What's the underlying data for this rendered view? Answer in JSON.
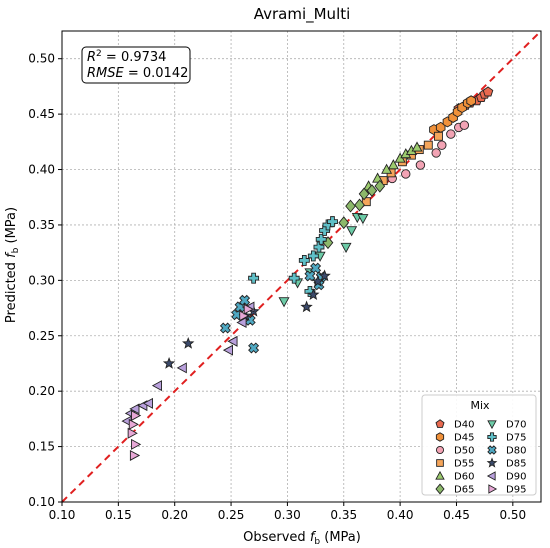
{
  "chart_data": {
    "type": "scatter",
    "title": "Avrami_Multi",
    "xlabel_main": "Observed ",
    "xlabel_sym": "f",
    "xlabel_sub": "b",
    "xlabel_unit": " (MPa)",
    "ylabel_main": "Predicted ",
    "ylabel_sym": "f",
    "ylabel_sub": "b",
    "ylabel_unit": " (MPa)",
    "xlim": [
      0.1,
      0.525
    ],
    "ylim": [
      0.1,
      0.525
    ],
    "xticks": [
      "0.10",
      "0.15",
      "0.20",
      "0.25",
      "0.30",
      "0.35",
      "0.40",
      "0.45",
      "0.50"
    ],
    "yticks": [
      "0.10",
      "0.15",
      "0.20",
      "0.25",
      "0.30",
      "0.35",
      "0.40",
      "0.45",
      "0.50"
    ],
    "grid": true,
    "reference_line": "y = x",
    "stats": {
      "r2_label": "R",
      "r2_sup": "2",
      "r2_value": " = 0.9734",
      "rmse_label": "RMSE",
      "rmse_value": " = 0.0142"
    },
    "legend": {
      "title": "Mix",
      "placement": "lower-right",
      "columns": 2
    },
    "series": [
      {
        "name": "D40",
        "marker": "pentagon",
        "color": "#e8694f",
        "points": [
          [
            0.452,
            0.455
          ],
          [
            0.458,
            0.458
          ],
          [
            0.462,
            0.46
          ],
          [
            0.468,
            0.462
          ],
          [
            0.472,
            0.465
          ],
          [
            0.475,
            0.468
          ],
          [
            0.478,
            0.47
          ]
        ]
      },
      {
        "name": "D45",
        "marker": "hexagon",
        "color": "#f0913a",
        "points": [
          [
            0.43,
            0.436
          ],
          [
            0.436,
            0.438
          ],
          [
            0.442,
            0.443
          ],
          [
            0.447,
            0.447
          ],
          [
            0.451,
            0.452
          ],
          [
            0.455,
            0.456
          ],
          [
            0.46,
            0.46
          ],
          [
            0.463,
            0.462
          ]
        ]
      },
      {
        "name": "D50",
        "marker": "circle",
        "color": "#f2a3b4",
        "points": [
          [
            0.393,
            0.392
          ],
          [
            0.405,
            0.396
          ],
          [
            0.418,
            0.404
          ],
          [
            0.432,
            0.415
          ],
          [
            0.437,
            0.422
          ],
          [
            0.445,
            0.432
          ],
          [
            0.452,
            0.438
          ],
          [
            0.457,
            0.44
          ]
        ]
      },
      {
        "name": "D55",
        "marker": "square",
        "color": "#f5a55a",
        "points": [
          [
            0.37,
            0.371
          ],
          [
            0.385,
            0.39
          ],
          [
            0.392,
            0.397
          ],
          [
            0.402,
            0.407
          ],
          [
            0.41,
            0.413
          ],
          [
            0.417,
            0.418
          ],
          [
            0.425,
            0.422
          ],
          [
            0.434,
            0.43
          ]
        ]
      },
      {
        "name": "D60",
        "marker": "triangle-up",
        "color": "#9ccb6e",
        "points": [
          [
            0.372,
            0.385
          ],
          [
            0.38,
            0.392
          ],
          [
            0.388,
            0.4
          ],
          [
            0.394,
            0.404
          ],
          [
            0.4,
            0.41
          ],
          [
            0.405,
            0.414
          ],
          [
            0.41,
            0.417
          ],
          [
            0.415,
            0.42
          ]
        ]
      },
      {
        "name": "D65",
        "marker": "diamond",
        "color": "#8cb86a",
        "points": [
          [
            0.336,
            0.334
          ],
          [
            0.35,
            0.352
          ],
          [
            0.356,
            0.367
          ],
          [
            0.364,
            0.368
          ],
          [
            0.368,
            0.378
          ],
          [
            0.375,
            0.381
          ],
          [
            0.382,
            0.385
          ]
        ]
      },
      {
        "name": "D70",
        "marker": "triangle-down",
        "color": "#6ccba7",
        "points": [
          [
            0.297,
            0.281
          ],
          [
            0.309,
            0.298
          ],
          [
            0.32,
            0.307
          ],
          [
            0.329,
            0.322
          ],
          [
            0.352,
            0.33
          ],
          [
            0.357,
            0.345
          ],
          [
            0.362,
            0.357
          ],
          [
            0.367,
            0.356
          ]
        ]
      },
      {
        "name": "D75",
        "marker": "plus",
        "color": "#5fc0c8",
        "points": [
          [
            0.27,
            0.302
          ],
          [
            0.306,
            0.302
          ],
          [
            0.315,
            0.318
          ],
          [
            0.323,
            0.322
          ],
          [
            0.328,
            0.33
          ],
          [
            0.33,
            0.337
          ],
          [
            0.333,
            0.345
          ],
          [
            0.336,
            0.35
          ],
          [
            0.34,
            0.353
          ],
          [
            0.32,
            0.29
          ]
        ]
      },
      {
        "name": "D80",
        "marker": "x-thick",
        "color": "#4fa8c2",
        "points": [
          [
            0.245,
            0.257
          ],
          [
            0.255,
            0.269
          ],
          [
            0.258,
            0.276
          ],
          [
            0.262,
            0.282
          ],
          [
            0.267,
            0.264
          ],
          [
            0.27,
            0.239
          ],
          [
            0.325,
            0.311
          ],
          [
            0.33,
            0.303
          ],
          [
            0.328,
            0.296
          ],
          [
            0.32,
            0.304
          ]
        ]
      },
      {
        "name": "D85",
        "marker": "star",
        "color": "#3b4a6b",
        "points": [
          [
            0.195,
            0.225
          ],
          [
            0.212,
            0.243
          ],
          [
            0.263,
            0.268
          ],
          [
            0.27,
            0.272
          ],
          [
            0.317,
            0.276
          ],
          [
            0.323,
            0.287
          ],
          [
            0.327,
            0.299
          ],
          [
            0.333,
            0.304
          ]
        ]
      },
      {
        "name": "D90",
        "marker": "triangle-left",
        "color": "#b9a0dc",
        "points": [
          [
            0.158,
            0.173
          ],
          [
            0.161,
            0.18
          ],
          [
            0.165,
            0.184
          ],
          [
            0.172,
            0.187
          ],
          [
            0.177,
            0.189
          ],
          [
            0.185,
            0.205
          ],
          [
            0.207,
            0.221
          ],
          [
            0.248,
            0.237
          ],
          [
            0.252,
            0.245
          ],
          [
            0.26,
            0.262
          ],
          [
            0.267,
            0.276
          ]
        ]
      },
      {
        "name": "D95",
        "marker": "triangle-right",
        "color": "#e7a8d6",
        "points": [
          [
            0.164,
            0.142
          ],
          [
            0.165,
            0.152
          ],
          [
            0.162,
            0.162
          ],
          [
            0.163,
            0.17
          ],
          [
            0.165,
            0.178
          ],
          [
            0.261,
            0.268
          ],
          [
            0.265,
            0.274
          ]
        ]
      }
    ]
  }
}
